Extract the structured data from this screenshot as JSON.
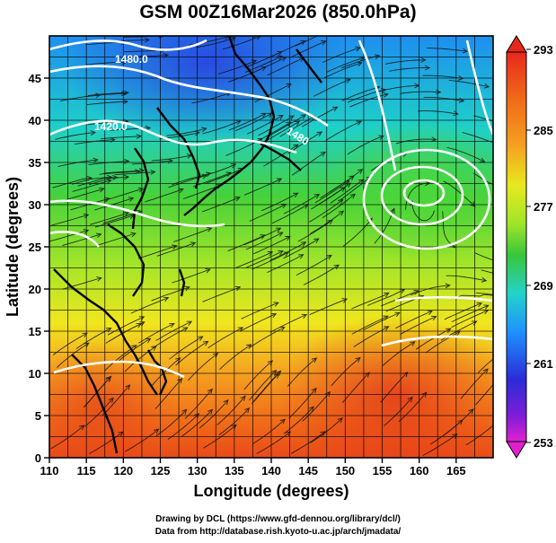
{
  "title": "GSM 00Z16Mar2026 (850.0hPa)",
  "map": {
    "lon_range": [
      110,
      170
    ],
    "lat_range": [
      0,
      50
    ],
    "x_ticks": [
      "110",
      "115",
      "120",
      "125",
      "130",
      "135",
      "140",
      "145",
      "150",
      "155",
      "160",
      "165"
    ],
    "y_ticks": [
      "0",
      "5",
      "10",
      "15",
      "20",
      "25",
      "30",
      "35",
      "40",
      "45"
    ],
    "xlabel": "Longitude (degrees)",
    "ylabel": "Latitude  (degrees)",
    "contours": [
      {
        "label": "1480.0"
      },
      {
        "label": "1420.0"
      },
      {
        "label": "1480"
      }
    ],
    "colorbar": {
      "labels": [
        "293",
        "285",
        "277",
        "269",
        "261",
        "253"
      ],
      "colors": [
        "#9400d3",
        "#2a2cd8",
        "#1e90ff",
        "#22d3c8",
        "#39c639",
        "#9fe62a",
        "#e8e81e",
        "#f5a020",
        "#f06a18",
        "#e8281e"
      ]
    }
  },
  "credits": {
    "line1": "Drawing by DCL (https://www.gfd-dennou.org/library/dcl/)",
    "line2": "Data from http://database.rish.kyoto-u.ac.jp/arch/jmadata/"
  }
}
